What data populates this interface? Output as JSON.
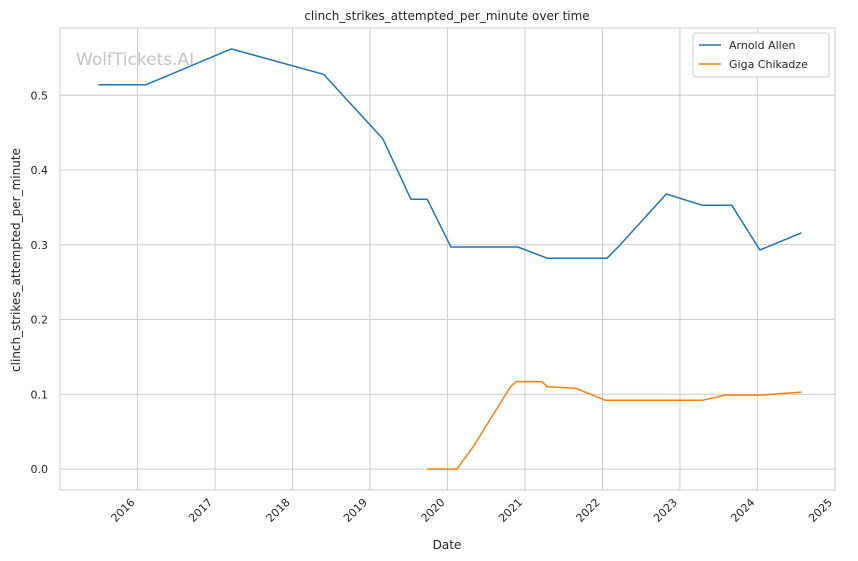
{
  "chart_data": {
    "type": "line",
    "title": "clinch_strikes_attempted_per_minute over time",
    "xlabel": "Date",
    "ylabel": "clinch_strikes_attempted_per_minute",
    "watermark": "WolfTickets.AI",
    "xlim": [
      "2015-01-01",
      "2025-01-01"
    ],
    "ylim": [
      -0.028,
      0.59
    ],
    "x_ticks": [
      "2016",
      "2017",
      "2018",
      "2019",
      "2020",
      "2021",
      "2022",
      "2023",
      "2024",
      "2025"
    ],
    "y_ticks": [
      "0.0",
      "0.1",
      "0.2",
      "0.3",
      "0.4",
      "0.5"
    ],
    "grid": true,
    "legend_position": "top-right",
    "series": [
      {
        "name": "Arnold Allen",
        "color": "#1f77b4",
        "points": [
          {
            "x": "2015-07-01",
            "y": 0.514
          },
          {
            "x": "2016-02-10",
            "y": 0.514
          },
          {
            "x": "2017-03-18",
            "y": 0.562
          },
          {
            "x": "2018-05-27",
            "y": 0.528
          },
          {
            "x": "2019-03-02",
            "y": 0.442
          },
          {
            "x": "2019-07-13",
            "y": 0.361
          },
          {
            "x": "2019-09-28",
            "y": 0.361
          },
          {
            "x": "2020-01-18",
            "y": 0.297
          },
          {
            "x": "2020-11-28",
            "y": 0.297
          },
          {
            "x": "2021-04-17",
            "y": 0.282
          },
          {
            "x": "2022-01-22",
            "y": 0.282
          },
          {
            "x": "2022-03-19",
            "y": 0.298
          },
          {
            "x": "2022-10-29",
            "y": 0.368
          },
          {
            "x": "2023-04-15",
            "y": 0.353
          },
          {
            "x": "2023-09-02",
            "y": 0.353
          },
          {
            "x": "2024-01-13",
            "y": 0.293
          },
          {
            "x": "2024-07-27",
            "y": 0.316
          }
        ]
      },
      {
        "name": "Giga Chikadze",
        "color": "#ff7f0e",
        "points": [
          {
            "x": "2019-09-28",
            "y": 0.0
          },
          {
            "x": "2020-02-15",
            "y": 0.0
          },
          {
            "x": "2020-05-02",
            "y": 0.03
          },
          {
            "x": "2020-10-24",
            "y": 0.11
          },
          {
            "x": "2020-11-21",
            "y": 0.117
          },
          {
            "x": "2021-03-20",
            "y": 0.117
          },
          {
            "x": "2021-04-17",
            "y": 0.11
          },
          {
            "x": "2021-08-28",
            "y": 0.108
          },
          {
            "x": "2022-01-15",
            "y": 0.092
          },
          {
            "x": "2023-04-15",
            "y": 0.092
          },
          {
            "x": "2023-08-05",
            "y": 0.099
          },
          {
            "x": "2024-01-13",
            "y": 0.099
          },
          {
            "x": "2024-07-27",
            "y": 0.103
          }
        ]
      }
    ]
  }
}
